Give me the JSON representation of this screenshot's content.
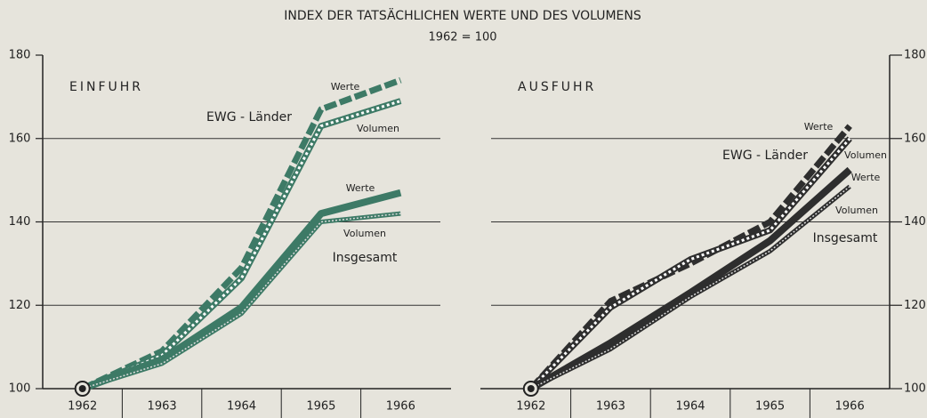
{
  "header": {
    "title": "INDEX DER TATSÄCHLICHEN WERTE UND DES VOLUMENS",
    "subtitle": "1962 = 100"
  },
  "chart_data": [
    {
      "type": "line",
      "title": "EINFUHR",
      "color": "#3d7a66",
      "y_axis_side": "left",
      "categories": [
        "1962",
        "1963",
        "1964",
        "1965",
        "1966"
      ],
      "ylim": [
        100,
        180
      ],
      "yticks": [
        100,
        120,
        140,
        160,
        180
      ],
      "grid": true,
      "series": [
        {
          "name": "Werte",
          "style": "dashed",
          "values": [
            100,
            109,
            129,
            167,
            174
          ]
        },
        {
          "name": "Volumen",
          "style": "checkered",
          "values": [
            100,
            108,
            126.5,
            163,
            169
          ]
        },
        {
          "name": "Werte",
          "style": "solid",
          "values": [
            100,
            107,
            119.5,
            142,
            147
          ]
        },
        {
          "name": "Volumen",
          "style": "hatched",
          "values": [
            100,
            106,
            118,
            140,
            142
          ]
        }
      ],
      "annotations": [
        "EWG - Länder",
        "Insgesamt"
      ]
    },
    {
      "type": "line",
      "title": "AUSFUHR",
      "color": "#2e2e2e",
      "y_axis_side": "right",
      "categories": [
        "1962",
        "1963",
        "1964",
        "1965",
        "1966"
      ],
      "ylim": [
        100,
        180
      ],
      "yticks": [
        100,
        120,
        140,
        160,
        180
      ],
      "grid": true,
      "series": [
        {
          "name": "Werte",
          "style": "dashed",
          "values": [
            100,
            121,
            130,
            140,
            163
          ]
        },
        {
          "name": "Volumen",
          "style": "checkered",
          "values": [
            100,
            119.5,
            131,
            138,
            160
          ]
        },
        {
          "name": "Werte",
          "style": "solid",
          "values": [
            100,
            111,
            123,
            135.5,
            152.5
          ]
        },
        {
          "name": "Volumen",
          "style": "hatched",
          "values": [
            100,
            109.5,
            122,
            133,
            148.5
          ]
        }
      ],
      "annotations": [
        "EWG - Länder",
        "Insgesamt"
      ]
    }
  ]
}
